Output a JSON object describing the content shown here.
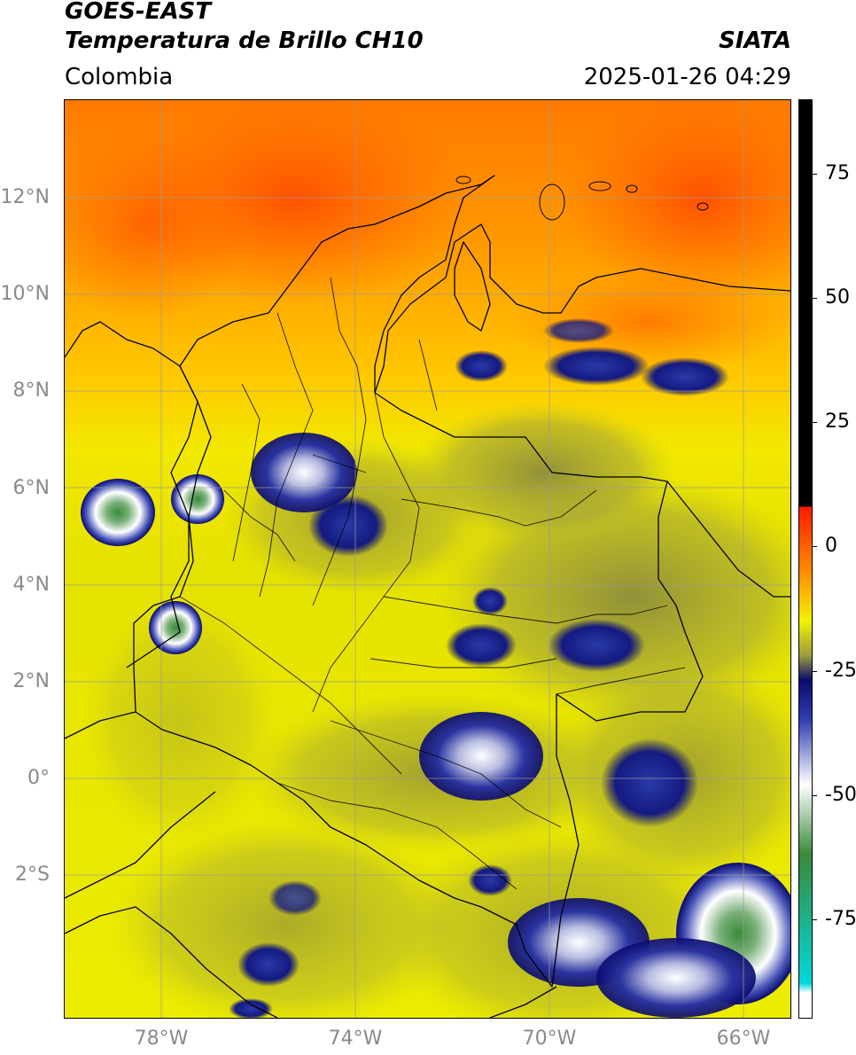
{
  "header": {
    "title": "GOES-EAST",
    "subtitle": "Temperatura de Brillo CH10",
    "organization": "SIATA",
    "region": "Colombia",
    "timestamp": "2025-01-26 04:29"
  },
  "map": {
    "lat_labels": [
      "12°N",
      "10°N",
      "8°N",
      "6°N",
      "4°N",
      "2°N",
      "0°",
      "2°S"
    ],
    "lon_labels": [
      "78°W",
      "74°W",
      "70°W",
      "66°W"
    ],
    "extent": {
      "lon_min": -80.0,
      "lon_max": -65.0,
      "lat_min": -5.0,
      "lat_max": 14.0
    }
  },
  "colorbar": {
    "labels": [
      "75",
      "50",
      "25",
      "0",
      "-25",
      "-50",
      "-75"
    ],
    "values": [
      75,
      50,
      25,
      0,
      -25,
      -50,
      -75
    ],
    "range": [
      -95,
      90
    ],
    "colors": {
      "black": "#000000",
      "red": "#ff1a00",
      "orange": "#ff8c00",
      "yellow": "#f2f200",
      "olive": "#9a9a40",
      "dark_navy": "#0a0a6e",
      "blue": "#3040b0",
      "white": "#ffffff",
      "green": "#3a8a3a",
      "cyan": "#00d8d8"
    }
  }
}
